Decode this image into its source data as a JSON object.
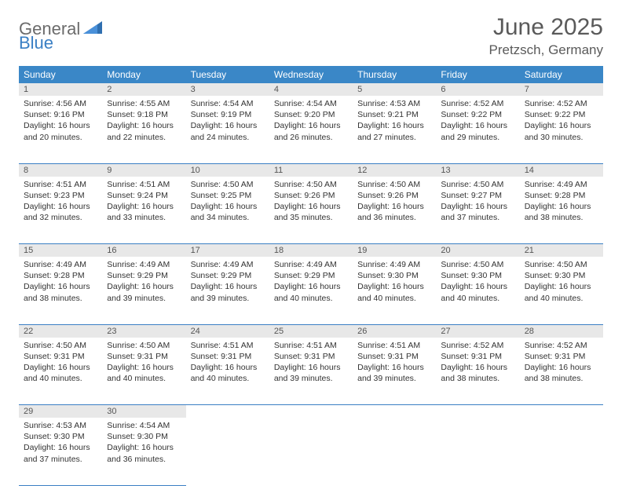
{
  "logo": {
    "general": "General",
    "blue": "Blue"
  },
  "title": "June 2025",
  "location": "Pretzsch, Germany",
  "colors": {
    "header_bg": "#3a87c7",
    "header_fg": "#ffffff",
    "daynum_bg": "#e8e8e8",
    "rule": "#3a7fc4",
    "logo_gray": "#6b6b6b",
    "logo_blue": "#3a7fc4"
  },
  "weekdays": [
    "Sunday",
    "Monday",
    "Tuesday",
    "Wednesday",
    "Thursday",
    "Friday",
    "Saturday"
  ],
  "weeks": [
    [
      {
        "n": "1",
        "sr": "4:56 AM",
        "ss": "9:16 PM",
        "dl": "16 hours and 20 minutes."
      },
      {
        "n": "2",
        "sr": "4:55 AM",
        "ss": "9:18 PM",
        "dl": "16 hours and 22 minutes."
      },
      {
        "n": "3",
        "sr": "4:54 AM",
        "ss": "9:19 PM",
        "dl": "16 hours and 24 minutes."
      },
      {
        "n": "4",
        "sr": "4:54 AM",
        "ss": "9:20 PM",
        "dl": "16 hours and 26 minutes."
      },
      {
        "n": "5",
        "sr": "4:53 AM",
        "ss": "9:21 PM",
        "dl": "16 hours and 27 minutes."
      },
      {
        "n": "6",
        "sr": "4:52 AM",
        "ss": "9:22 PM",
        "dl": "16 hours and 29 minutes."
      },
      {
        "n": "7",
        "sr": "4:52 AM",
        "ss": "9:22 PM",
        "dl": "16 hours and 30 minutes."
      }
    ],
    [
      {
        "n": "8",
        "sr": "4:51 AM",
        "ss": "9:23 PM",
        "dl": "16 hours and 32 minutes."
      },
      {
        "n": "9",
        "sr": "4:51 AM",
        "ss": "9:24 PM",
        "dl": "16 hours and 33 minutes."
      },
      {
        "n": "10",
        "sr": "4:50 AM",
        "ss": "9:25 PM",
        "dl": "16 hours and 34 minutes."
      },
      {
        "n": "11",
        "sr": "4:50 AM",
        "ss": "9:26 PM",
        "dl": "16 hours and 35 minutes."
      },
      {
        "n": "12",
        "sr": "4:50 AM",
        "ss": "9:26 PM",
        "dl": "16 hours and 36 minutes."
      },
      {
        "n": "13",
        "sr": "4:50 AM",
        "ss": "9:27 PM",
        "dl": "16 hours and 37 minutes."
      },
      {
        "n": "14",
        "sr": "4:49 AM",
        "ss": "9:28 PM",
        "dl": "16 hours and 38 minutes."
      }
    ],
    [
      {
        "n": "15",
        "sr": "4:49 AM",
        "ss": "9:28 PM",
        "dl": "16 hours and 38 minutes."
      },
      {
        "n": "16",
        "sr": "4:49 AM",
        "ss": "9:29 PM",
        "dl": "16 hours and 39 minutes."
      },
      {
        "n": "17",
        "sr": "4:49 AM",
        "ss": "9:29 PM",
        "dl": "16 hours and 39 minutes."
      },
      {
        "n": "18",
        "sr": "4:49 AM",
        "ss": "9:29 PM",
        "dl": "16 hours and 40 minutes."
      },
      {
        "n": "19",
        "sr": "4:49 AM",
        "ss": "9:30 PM",
        "dl": "16 hours and 40 minutes."
      },
      {
        "n": "20",
        "sr": "4:50 AM",
        "ss": "9:30 PM",
        "dl": "16 hours and 40 minutes."
      },
      {
        "n": "21",
        "sr": "4:50 AM",
        "ss": "9:30 PM",
        "dl": "16 hours and 40 minutes."
      }
    ],
    [
      {
        "n": "22",
        "sr": "4:50 AM",
        "ss": "9:31 PM",
        "dl": "16 hours and 40 minutes."
      },
      {
        "n": "23",
        "sr": "4:50 AM",
        "ss": "9:31 PM",
        "dl": "16 hours and 40 minutes."
      },
      {
        "n": "24",
        "sr": "4:51 AM",
        "ss": "9:31 PM",
        "dl": "16 hours and 40 minutes."
      },
      {
        "n": "25",
        "sr": "4:51 AM",
        "ss": "9:31 PM",
        "dl": "16 hours and 39 minutes."
      },
      {
        "n": "26",
        "sr": "4:51 AM",
        "ss": "9:31 PM",
        "dl": "16 hours and 39 minutes."
      },
      {
        "n": "27",
        "sr": "4:52 AM",
        "ss": "9:31 PM",
        "dl": "16 hours and 38 minutes."
      },
      {
        "n": "28",
        "sr": "4:52 AM",
        "ss": "9:31 PM",
        "dl": "16 hours and 38 minutes."
      }
    ],
    [
      {
        "n": "29",
        "sr": "4:53 AM",
        "ss": "9:30 PM",
        "dl": "16 hours and 37 minutes."
      },
      {
        "n": "30",
        "sr": "4:54 AM",
        "ss": "9:30 PM",
        "dl": "16 hours and 36 minutes."
      },
      null,
      null,
      null,
      null,
      null
    ]
  ],
  "labels": {
    "sunrise": "Sunrise: ",
    "sunset": "Sunset: ",
    "daylight": "Daylight: "
  }
}
